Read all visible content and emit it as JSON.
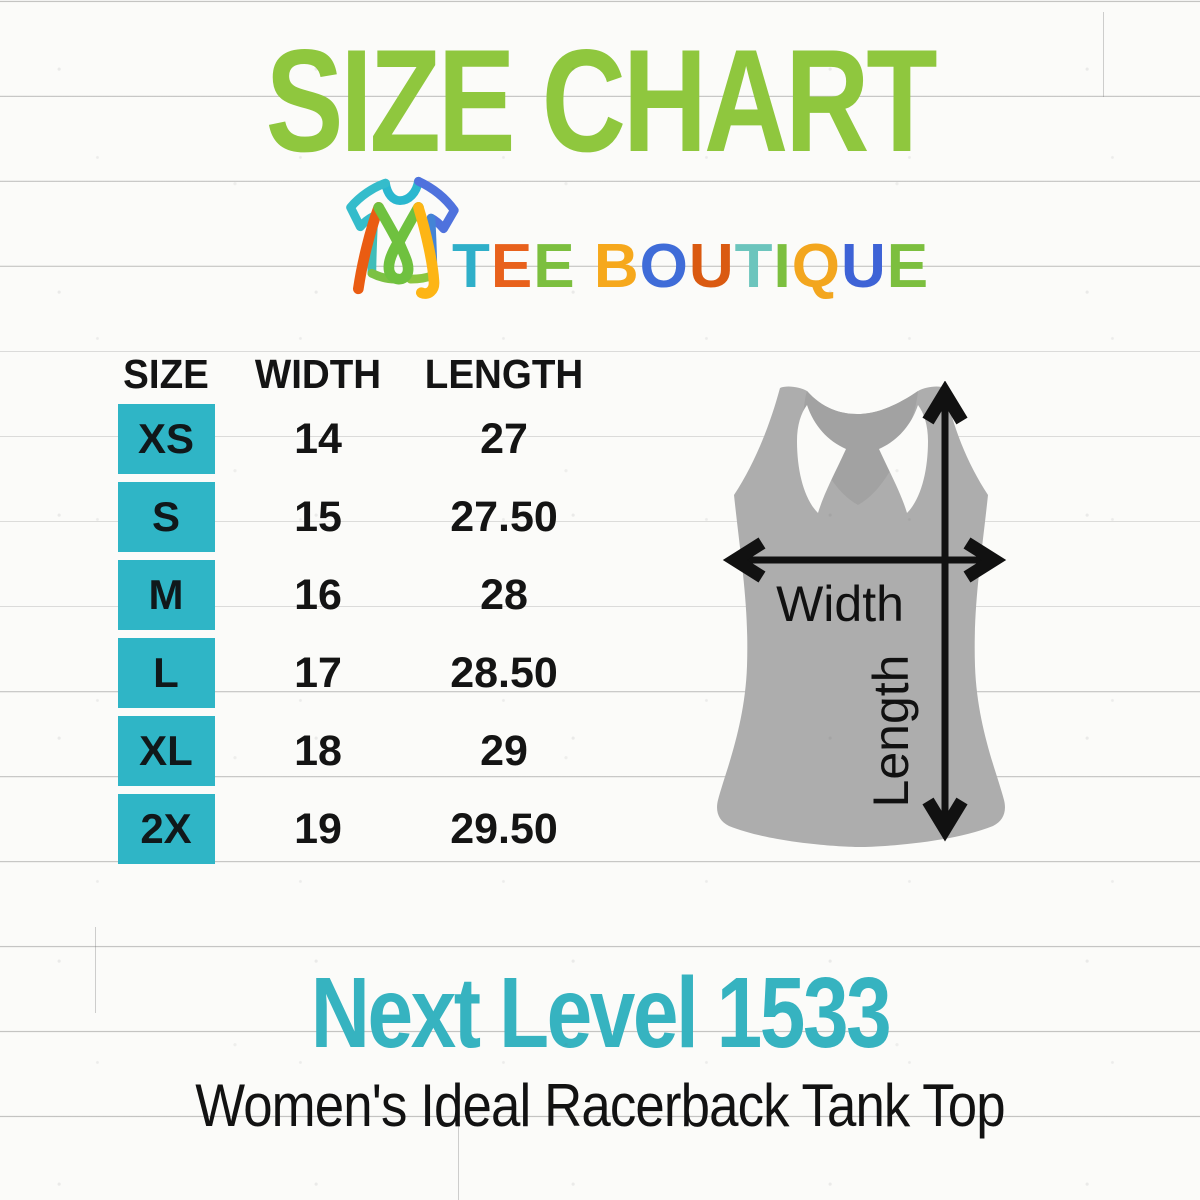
{
  "title": "SIZE CHART",
  "logo": {
    "icon_name": "tee-boutique-tshirt-monogram",
    "brand_letters": [
      {
        "ch": "T",
        "color": "#2fafc9"
      },
      {
        "ch": "E",
        "color": "#e8611c"
      },
      {
        "ch": "E",
        "color": "#7cbf3f"
      },
      {
        "ch": " ",
        "color": "#000000"
      },
      {
        "ch": "B",
        "color": "#f6a81c"
      },
      {
        "ch": "O",
        "color": "#3f6cd8"
      },
      {
        "ch": "U",
        "color": "#da5a11"
      },
      {
        "ch": "T",
        "color": "#6cc5bd"
      },
      {
        "ch": "I",
        "color": "#7cbf3f"
      },
      {
        "ch": "Q",
        "color": "#f3a61e"
      },
      {
        "ch": "U",
        "color": "#3e63d6"
      },
      {
        "ch": "E",
        "color": "#7cbf3f"
      }
    ]
  },
  "size_table": {
    "headers": [
      "SIZE",
      "WIDTH",
      "LENGTH"
    ],
    "rows": [
      {
        "size": "XS",
        "width": "14",
        "length": "27"
      },
      {
        "size": "S",
        "width": "15",
        "length": "27.50"
      },
      {
        "size": "M",
        "width": "16",
        "length": "28"
      },
      {
        "size": "L",
        "width": "17",
        "length": "28.50"
      },
      {
        "size": "XL",
        "width": "18",
        "length": "29"
      },
      {
        "size": "2X",
        "width": "19",
        "length": "29.50"
      }
    ]
  },
  "diagram": {
    "garment": "gray racerback tank top with measurement arrows",
    "width_label": "Width",
    "length_label": "Length"
  },
  "footer": {
    "product_line": "Next Level 1533",
    "product_name": "Women's Ideal Racerback Tank Top"
  },
  "colors": {
    "title_green": "#8fc73e",
    "accent_teal": "#2fb5c6",
    "footer_teal": "#36b3c0",
    "tank_gray": "#adadad",
    "tank_back_panel_gray": "#a2a2a2",
    "text_black": "#121212",
    "background": "#fbfbf9"
  }
}
